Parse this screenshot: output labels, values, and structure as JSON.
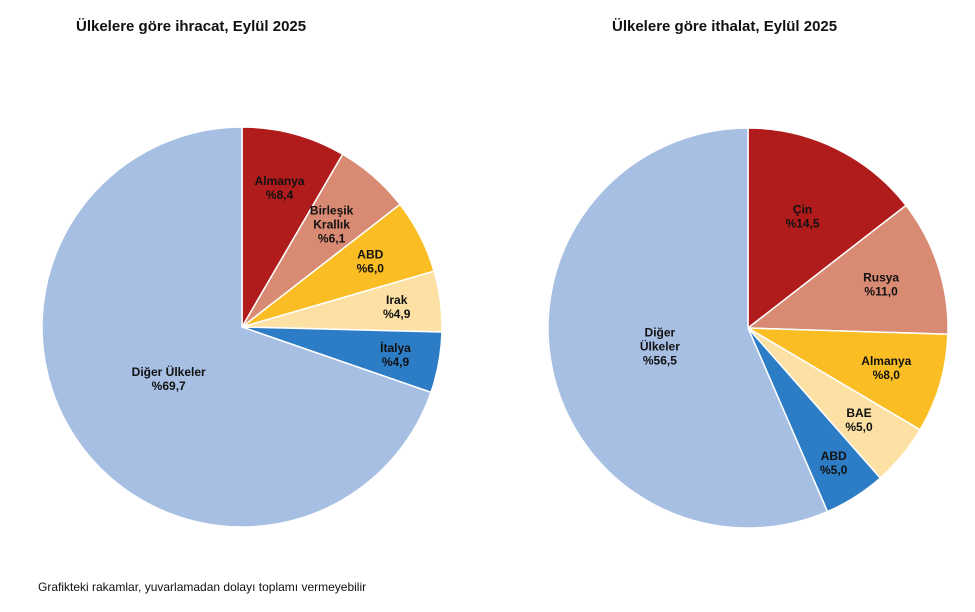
{
  "chart_data": [
    {
      "type": "pie",
      "title": "Ülkelere göre ihracat, Eylül 2025",
      "slices": [
        {
          "label": [
            "Almanya"
          ],
          "value": 8.4,
          "value_label": "%8,4",
          "color": "#b01c1c"
        },
        {
          "label": [
            "Birleşik",
            "Krallık"
          ],
          "value": 6.1,
          "value_label": "%6,1",
          "color": "#d98a72"
        },
        {
          "label": [
            "ABD"
          ],
          "value": 6.0,
          "value_label": "%6,0",
          "color": "#fbbd24"
        },
        {
          "label": [
            "Irak"
          ],
          "value": 4.9,
          "value_label": "%4,9",
          "color": "#fde1a4"
        },
        {
          "label": [
            "İtalya"
          ],
          "value": 4.9,
          "value_label": "%4,9",
          "color": "#2d7cc6"
        },
        {
          "label": [
            "Diğer Ülkeler"
          ],
          "value": 69.7,
          "value_label": "%69,7",
          "color": "#a6bfe3"
        }
      ]
    },
    {
      "type": "pie",
      "title": "Ülkelere göre ithalat, Eylül 2025",
      "slices": [
        {
          "label": [
            "Çin"
          ],
          "value": 14.5,
          "value_label": "%14,5",
          "color": "#b01c1c"
        },
        {
          "label": [
            "Rusya"
          ],
          "value": 11.0,
          "value_label": "%11,0",
          "color": "#d98a72"
        },
        {
          "label": [
            "Almanya"
          ],
          "value": 8.0,
          "value_label": "%8,0",
          "color": "#fbbd24"
        },
        {
          "label": [
            "BAE"
          ],
          "value": 5.0,
          "value_label": "%5,0",
          "color": "#fde1a4"
        },
        {
          "label": [
            "ABD"
          ],
          "value": 5.0,
          "value_label": "%5,0",
          "color": "#2d7cc6"
        },
        {
          "label": [
            "Diğer",
            "Ülkeler"
          ],
          "value": 56.5,
          "value_label": "%56,5",
          "color": "#a6bfe3"
        }
      ]
    }
  ],
  "footnote": "Grafikteki rakamlar, yuvarlamadan dolayı toplamı vermeyebilir"
}
